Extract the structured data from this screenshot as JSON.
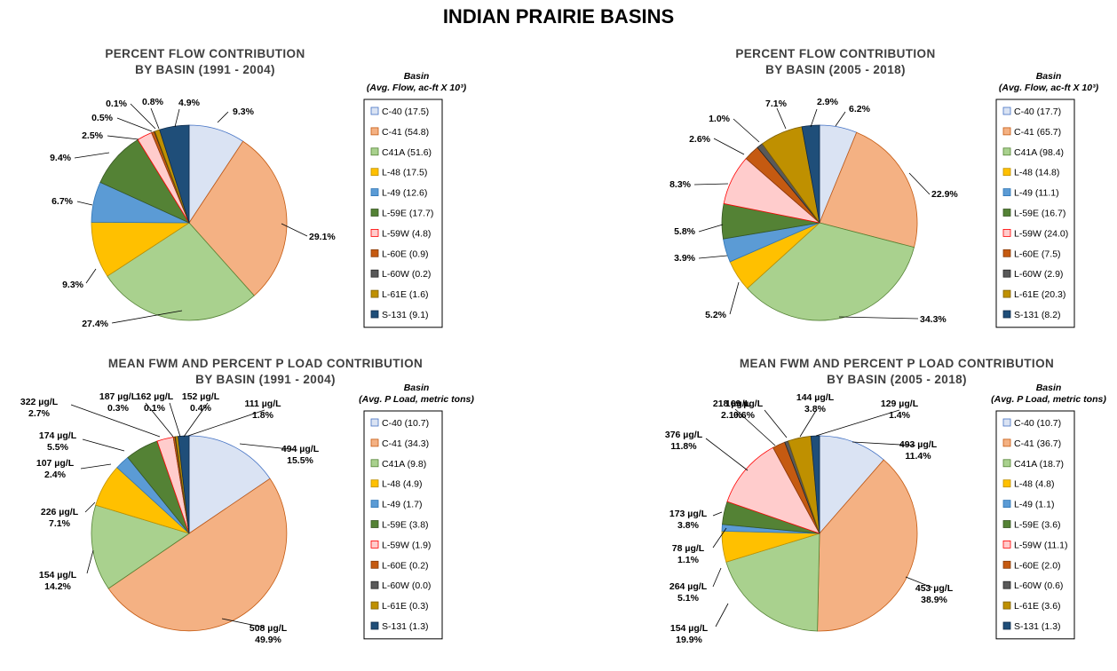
{
  "title": "INDIAN PRAIRIE BASINS",
  "basin_colors": [
    "#dae3f3",
    "#f4b183",
    "#a9d18e",
    "#ffc000",
    "#5b9bd5",
    "#548235",
    "#ffcccc",
    "#c55a11",
    "#595959",
    "#bf9000",
    "#1f4e79"
  ],
  "chart_data": [
    {
      "type": "pie",
      "title": [
        "PERCENT FLOW CONTRIBUTION",
        "BY BASIN (1991 - 2004)"
      ],
      "legend_title": [
        "Basin",
        "(Avg. Flow, ac-ft X 10³)"
      ],
      "legend": [
        "C-40 (17.5)",
        "C-41 (54.8)",
        "C41A (51.6)",
        "L-48 (17.5)",
        "L-49 (12.6)",
        "L-59E (17.7)",
        "L-59W (4.8)",
        "L-60E (0.9)",
        "L-60W (0.2)",
        "L-61E (1.6)",
        "S-131 (9.1)"
      ],
      "values": [
        9.3,
        29.1,
        27.4,
        9.3,
        6.7,
        9.4,
        2.5,
        0.5,
        0.1,
        0.8,
        4.9
      ],
      "labels": [
        [
          "9.3%"
        ],
        [
          "29.1%"
        ],
        [
          "27.4%"
        ],
        [
          "9.3%"
        ],
        [
          "6.7%"
        ],
        [
          "9.4%"
        ],
        [
          "2.5%"
        ],
        [
          "0.5%"
        ],
        [
          "0.1%"
        ],
        [
          "0.8%"
        ],
        [
          "4.9%"
        ]
      ]
    },
    {
      "type": "pie",
      "title": [
        "PERCENT FLOW CONTRIBUTION",
        "BY BASIN (2005 - 2018)"
      ],
      "legend_title": [
        "Basin",
        "(Avg. Flow, ac-ft X 10³)"
      ],
      "legend": [
        "C-40 (17.7)",
        "C-41 (65.7)",
        "C41A (98.4)",
        "L-48 (14.8)",
        "L-49 (11.1)",
        "L-59E (16.7)",
        "L-59W (24.0)",
        "L-60E (7.5)",
        "L-60W (2.9)",
        "L-61E (20.3)",
        "S-131 (8.2)"
      ],
      "values": [
        6.2,
        22.9,
        34.3,
        5.2,
        3.9,
        5.8,
        8.3,
        2.6,
        1.0,
        7.1,
        2.9
      ],
      "labels": [
        [
          "6.2%"
        ],
        [
          "22.9%"
        ],
        [
          "34.3%"
        ],
        [
          "5.2%"
        ],
        [
          "3.9%"
        ],
        [
          "5.8%"
        ],
        [
          "8.3%"
        ],
        [
          "2.6%"
        ],
        [
          "1.0%"
        ],
        [
          "7.1%"
        ],
        [
          "2.9%"
        ]
      ]
    },
    {
      "type": "pie",
      "title": [
        "MEAN FWM AND PERCENT P LOAD CONTRIBUTION",
        "BY BASIN (1991 - 2004)"
      ],
      "legend_title": [
        "Basin",
        "(Avg. P Load, metric tons)"
      ],
      "legend": [
        "C-40 (10.7)",
        "C-41 (34.3)",
        "C41A (9.8)",
        "L-48 (4.9)",
        "L-49 (1.7)",
        "L-59E (3.8)",
        "L-59W (1.9)",
        "L-60E (0.2)",
        "L-60W (0.0)",
        "L-61E (0.3)",
        "S-131 (1.3)"
      ],
      "values": [
        15.5,
        49.9,
        14.2,
        7.1,
        2.4,
        5.5,
        2.7,
        0.3,
        0.1,
        0.4,
        1.8
      ],
      "labels": [
        [
          "494  µg/L",
          "15.5%"
        ],
        [
          "508  µg/L",
          "49.9%"
        ],
        [
          "154  µg/L",
          "14.2%"
        ],
        [
          "226  µg/L",
          "7.1%"
        ],
        [
          "107  µg/L",
          "2.4%"
        ],
        [
          "174  µg/L",
          "5.5%"
        ],
        [
          "322  µg/L",
          "2.7%"
        ],
        [
          "187  µg/L",
          "0.3%"
        ],
        [
          "162  µg/L",
          "0.1%"
        ],
        [
          "152  µg/L",
          "0.4%"
        ],
        [
          "111  µg/L",
          "1.8%"
        ]
      ]
    },
    {
      "type": "pie",
      "title": [
        "MEAN FWM AND PERCENT P LOAD CONTRIBUTION",
        "BY BASIN (2005 - 2018)"
      ],
      "legend_title": [
        "Basin",
        "(Avg. P Load, metric tons)"
      ],
      "legend": [
        "C-40 (10.7)",
        "C-41 (36.7)",
        "C41A (18.7)",
        "L-48 (4.8)",
        "L-49 (1.1)",
        "L-59E (3.6)",
        "L-59W (11.1)",
        "L-60E (2.0)",
        "L-60W (0.6)",
        "L-61E (3.6)",
        "S-131 (1.3)"
      ],
      "values": [
        11.4,
        38.9,
        19.9,
        5.1,
        1.1,
        3.8,
        11.8,
        2.1,
        0.6,
        3.8,
        1.4
      ],
      "labels": [
        [
          "493  µg/L",
          "11.4%"
        ],
        [
          "453  µg/L",
          "38.9%"
        ],
        [
          "154  µg/L",
          "19.9%"
        ],
        [
          "264  µg/L",
          "5.1%"
        ],
        [
          "78  µg/L",
          "1.1%"
        ],
        [
          "173  µg/L",
          "3.8%"
        ],
        [
          "376  µg/L",
          "11.8%"
        ],
        [
          "218  µg/L",
          "2.1%"
        ],
        [
          "169  µg/L",
          "0.6%"
        ],
        [
          "144  µg/L",
          "3.8%"
        ],
        [
          "129  µg/L",
          "1.4%"
        ]
      ]
    }
  ]
}
